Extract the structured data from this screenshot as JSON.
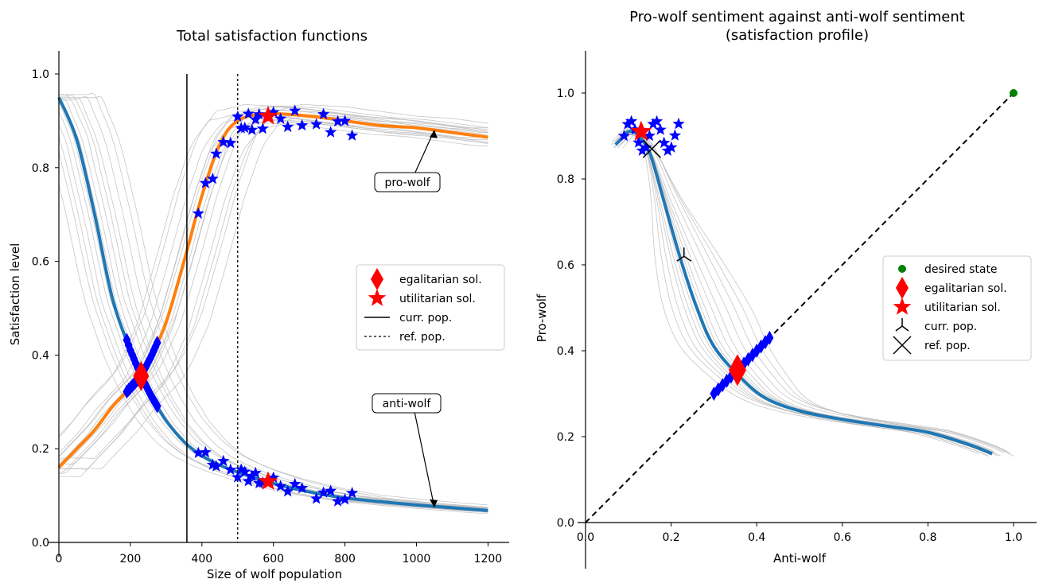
{
  "chart_data": [
    {
      "type": "line",
      "title": "Total satisfaction functions",
      "xlabel": "Size of wolf population",
      "ylabel": "Satisfaction level",
      "xlim": [
        0,
        1240
      ],
      "ylim": [
        0,
        1.05
      ],
      "xticks": [
        0,
        200,
        400,
        600,
        800,
        1000,
        1200
      ],
      "yticks": [
        0.0,
        0.2,
        0.4,
        0.6,
        0.8,
        1.0
      ],
      "grid": false,
      "legend_position": "center-right",
      "series": [
        {
          "color": "#1f77b4",
          "x": [
            0,
            50,
            100,
            150,
            200,
            230,
            260,
            300,
            350,
            400,
            450,
            500,
            580,
            700,
            800,
            900,
            1000,
            1100,
            1200
          ],
          "y": [
            0.95,
            0.86,
            0.7,
            0.52,
            0.41,
            0.355,
            0.31,
            0.26,
            0.215,
            0.185,
            0.165,
            0.15,
            0.13,
            0.108,
            0.095,
            0.087,
            0.08,
            0.074,
            0.068
          ]
        },
        {
          "color": "#ff7f0e",
          "x": [
            0,
            50,
            100,
            150,
            200,
            230,
            260,
            300,
            350,
            400,
            450,
            500,
            580,
            700,
            800,
            900,
            1000,
            1100,
            1200
          ],
          "y": [
            0.16,
            0.2,
            0.24,
            0.29,
            0.33,
            0.355,
            0.4,
            0.47,
            0.6,
            0.74,
            0.85,
            0.9,
            0.915,
            0.91,
            0.9,
            0.89,
            0.885,
            0.875,
            0.865
          ]
        }
      ],
      "markers": {
        "egalitarian": [
          {
            "x": 230,
            "y": 0.355
          }
        ],
        "utilitarian": [
          {
            "x": 585,
            "y": 0.91
          },
          {
            "x": 585,
            "y": 0.13
          }
        ],
        "curr_pop_x": 358,
        "ref_pop_x": 500,
        "blue_star_xs": [
          390,
          410,
          430,
          440,
          460,
          480,
          500,
          510,
          520,
          530,
          540,
          550,
          560,
          570,
          600,
          620,
          640,
          660,
          680,
          720,
          740,
          760,
          780,
          800,
          820
        ],
        "blue_diamond_xs": [
          190,
          195,
          200,
          205,
          210,
          215,
          220,
          240,
          245,
          250,
          255,
          260,
          265,
          270,
          275
        ]
      },
      "annotations": [
        {
          "text": "pro-wolf",
          "x": 1050,
          "y": 0.88
        },
        {
          "text": "anti-wolf",
          "x": 1050,
          "y": 0.075
        }
      ],
      "legend": [
        {
          "label": "egalitarian sol.",
          "marker": "red-diamond"
        },
        {
          "label": "utilitarian sol.",
          "marker": "red-star"
        },
        {
          "label": "curr. pop.",
          "marker": "solid-line"
        },
        {
          "label": "ref. pop.",
          "marker": "dotted-line"
        }
      ]
    },
    {
      "type": "line",
      "title": "Pro-wolf sentiment against anti-wolf sentiment\n(satisfaction profile)",
      "xlabel": "Anti-wolf",
      "ylabel": "Pro-wolf",
      "xlim": [
        0,
        1.05
      ],
      "ylim": [
        0,
        1.1
      ],
      "xticks": [
        0.0,
        0.2,
        0.4,
        0.6,
        0.8,
        1.0
      ],
      "yticks": [
        0.0,
        0.2,
        0.4,
        0.6,
        0.8,
        1.0
      ],
      "grid": false,
      "legend_position": "center-right",
      "series": [
        {
          "color": "#1f77b4",
          "x": [
            0.95,
            0.9,
            0.8,
            0.7,
            0.6,
            0.5,
            0.42,
            0.36,
            0.3,
            0.26,
            0.22,
            0.18,
            0.15,
            0.12,
            0.1,
            0.09,
            0.07
          ],
          "y": [
            0.16,
            0.18,
            0.21,
            0.225,
            0.24,
            0.26,
            0.29,
            0.34,
            0.41,
            0.5,
            0.62,
            0.76,
            0.86,
            0.905,
            0.91,
            0.9,
            0.88
          ]
        },
        {
          "color": "#000000",
          "x": [
            0.0,
            1.0
          ],
          "y": [
            0.0,
            1.0
          ]
        }
      ],
      "markers": {
        "desired_state": {
          "x": 1.0,
          "y": 1.0
        },
        "egalitarian": {
          "x": 0.355,
          "y": 0.355
        },
        "utilitarian": {
          "x": 0.13,
          "y": 0.91
        },
        "curr_pop": {
          "x": 0.23,
          "y": 0.62
        },
        "ref_pop": {
          "x": 0.155,
          "y": 0.87
        }
      },
      "legend": [
        {
          "label": "desired state",
          "marker": "green-dot"
        },
        {
          "label": "egalitarian sol.",
          "marker": "red-diamond"
        },
        {
          "label": "utilitarian sol.",
          "marker": "red-star"
        },
        {
          "label": "curr. pop.",
          "marker": "tri-down"
        },
        {
          "label": "ref. pop.",
          "marker": "x"
        }
      ]
    }
  ]
}
